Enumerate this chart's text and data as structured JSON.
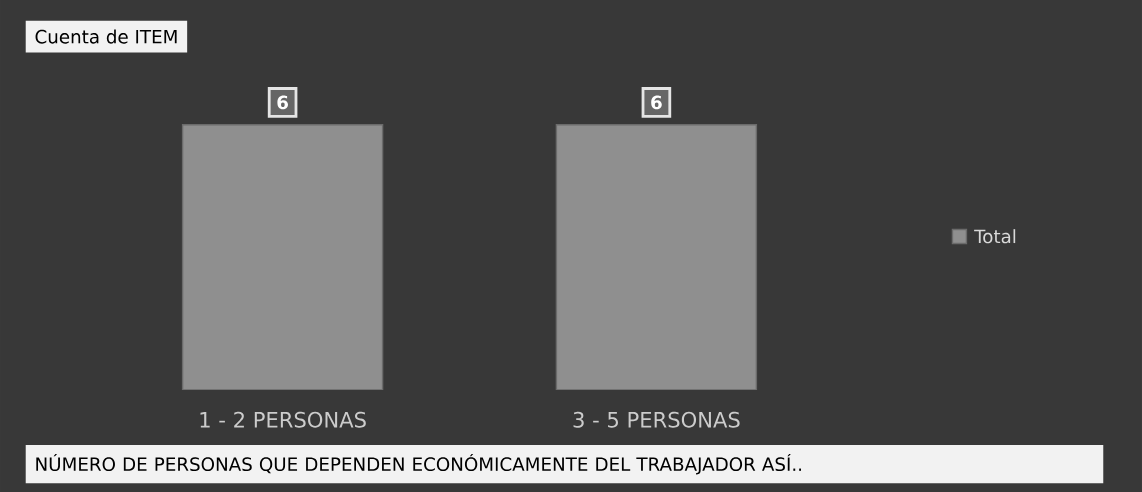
{
  "chart_data": {
    "type": "bar",
    "title": "Cuenta de ITEM",
    "xlabel": "NÚMERO DE PERSONAS QUE DEPENDEN ECONÓMICAMENTE DEL TRABAJADOR ASÍ..",
    "categories": [
      "1 - 2 PERSONAS",
      "3 - 5 PERSONAS"
    ],
    "series": [
      {
        "name": "Total",
        "color": "#8f8f8f",
        "values": [
          6,
          6
        ]
      }
    ],
    "data_labels": true,
    "legend": "right"
  }
}
